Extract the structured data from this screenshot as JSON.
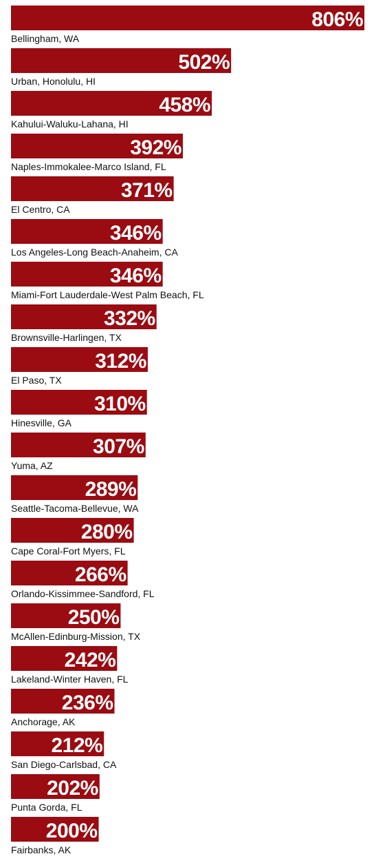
{
  "chart_data": {
    "type": "bar",
    "orientation": "horizontal",
    "color": "#9a0c12",
    "categories": [
      "Bellingham, WA",
      "Urban, Honolulu, HI",
      "Kahului-Waluku-Lahana, HI",
      "Naples-Immokalee-Marco Island, FL",
      "El Centro, CA",
      "Los Angeles-Long Beach-Anaheim, CA",
      "Miami-Fort Lauderdale-West Palm Beach, FL",
      "Brownsville-Harlingen, TX",
      "El Paso, TX",
      "Hinesville, GA",
      "Yuma, AZ",
      "Seattle-Tacoma-Bellevue, WA",
      "Cape Coral-Fort Myers, FL",
      "Orlando-Kissimmee-Sandford, FL",
      "McAllen-Edinburg-Mission, TX",
      "Lakeland-Winter Haven, FL",
      "Anchorage, AK",
      "San Diego-Carlsbad, CA",
      "Punta Gorda, FL",
      "Fairbanks, AK"
    ],
    "values": [
      806,
      502,
      458,
      392,
      371,
      346,
      346,
      332,
      312,
      310,
      307,
      289,
      280,
      266,
      250,
      242,
      236,
      212,
      202,
      200
    ],
    "value_labels": [
      "806%",
      "502%",
      "458%",
      "392%",
      "371%",
      "346%",
      "346%",
      "332%",
      "312%",
      "310%",
      "307%",
      "289%",
      "280%",
      "266%",
      "250%",
      "242%",
      "236%",
      "212%",
      "202%",
      "200%"
    ]
  }
}
